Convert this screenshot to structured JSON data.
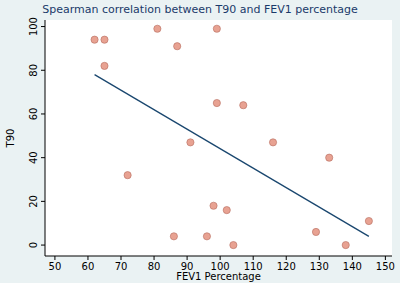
{
  "chart_data": {
    "type": "scatter",
    "title": "Spearman correlation between T90 and FEV1 percentage",
    "x_label": "FEV1 Percentage",
    "y_label": "T90",
    "xlim": [
      47,
      152
    ],
    "ylim": [
      -5,
      103
    ],
    "xticks": [
      50,
      60,
      70,
      80,
      90,
      100,
      110,
      120,
      130,
      140,
      150
    ],
    "yticks": [
      0,
      20,
      40,
      60,
      80,
      100
    ],
    "grid": false,
    "series": [
      {
        "type": "scatter",
        "marker": "circle",
        "color": "#e8a292",
        "x": [
          62,
          65,
          65,
          72,
          81,
          86,
          87,
          91,
          96,
          98,
          99,
          99,
          102,
          104,
          107,
          116,
          129,
          133,
          138,
          145
        ],
        "values": [
          94,
          94,
          82,
          32,
          99,
          4,
          91,
          47,
          4,
          18,
          99,
          65,
          16,
          0,
          64,
          47,
          6,
          40,
          0,
          11
        ]
      },
      {
        "type": "line",
        "line_style": "solid",
        "color": "#1a476f",
        "x": [
          62,
          145
        ],
        "values": [
          78,
          4
        ]
      }
    ]
  }
}
